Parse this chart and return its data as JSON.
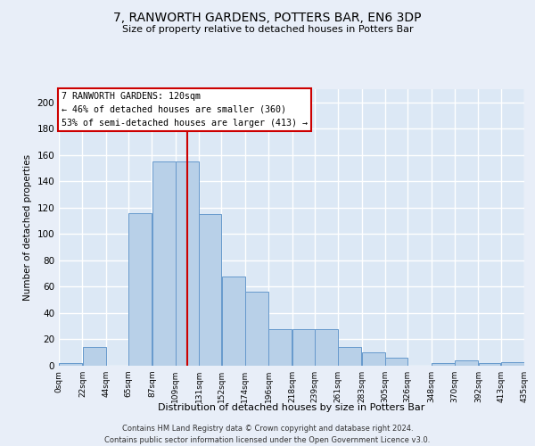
{
  "title": "7, RANWORTH GARDENS, POTTERS BAR, EN6 3DP",
  "subtitle": "Size of property relative to detached houses in Potters Bar",
  "xlabel": "Distribution of detached houses by size in Potters Bar",
  "ylabel": "Number of detached properties",
  "bar_color": "#b8d0e8",
  "bar_edge_color": "#6699cc",
  "background_color": "#dce8f5",
  "fig_background_color": "#e8eef8",
  "grid_color": "#ffffff",
  "annotation_box_color": "#cc0000",
  "vline_color": "#cc0000",
  "bin_edges": [
    0,
    22,
    44,
    65,
    87,
    109,
    131,
    152,
    174,
    196,
    218,
    239,
    261,
    283,
    305,
    326,
    348,
    370,
    392,
    413,
    435
  ],
  "bar_heights": [
    2,
    14,
    0,
    116,
    155,
    155,
    115,
    68,
    56,
    28,
    28,
    28,
    14,
    10,
    6,
    0,
    2,
    4,
    2,
    3
  ],
  "tick_labels": [
    "0sqm",
    "22sqm",
    "44sqm",
    "65sqm",
    "87sqm",
    "109sqm",
    "131sqm",
    "152sqm",
    "174sqm",
    "196sqm",
    "218sqm",
    "239sqm",
    "261sqm",
    "283sqm",
    "305sqm",
    "326sqm",
    "348sqm",
    "370sqm",
    "392sqm",
    "413sqm",
    "435sqm"
  ],
  "property_size": 120,
  "annotation_text": "7 RANWORTH GARDENS: 120sqm\n← 46% of detached houses are smaller (360)\n53% of semi-detached houses are larger (413) →",
  "footer_text": "Contains HM Land Registry data © Crown copyright and database right 2024.\nContains public sector information licensed under the Open Government Licence v3.0.",
  "ylim": [
    0,
    210
  ],
  "yticks": [
    0,
    20,
    40,
    60,
    80,
    100,
    120,
    140,
    160,
    180,
    200
  ]
}
